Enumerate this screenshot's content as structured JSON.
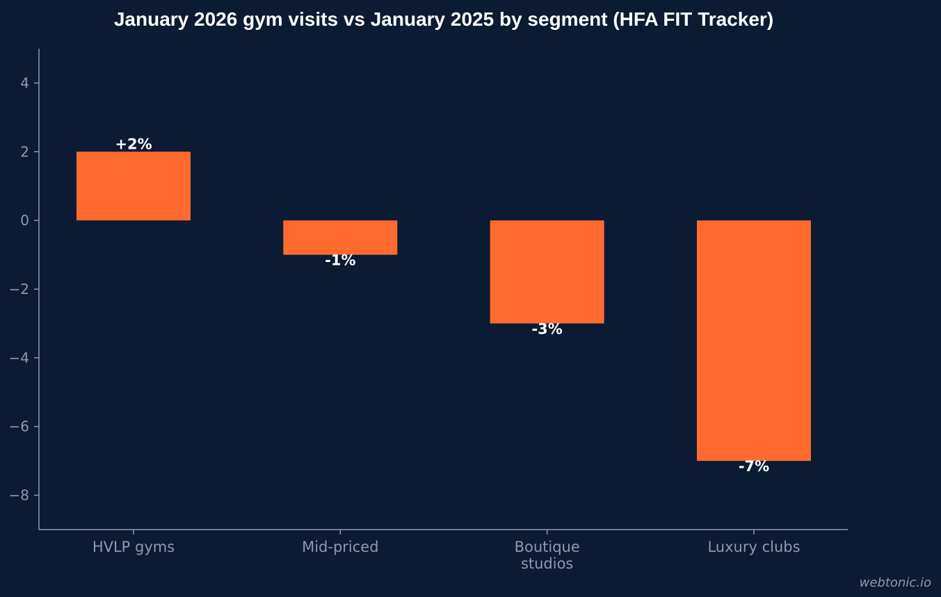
{
  "chart_data": {
    "type": "bar",
    "title": "January 2026 gym visits vs January 2025 by segment (HFA FIT Tracker)",
    "xlabel": "",
    "ylabel": "",
    "categories": [
      [
        "HVLP gyms"
      ],
      [
        "Mid-priced"
      ],
      [
        "Boutique",
        "studios"
      ],
      [
        "Luxury clubs"
      ]
    ],
    "values": [
      2,
      -1,
      -3,
      -7
    ],
    "data_labels": [
      "+2%",
      "-1%",
      "-3%",
      "-7%"
    ],
    "ylim": [
      -9,
      5
    ],
    "yticks": [
      4,
      2,
      0,
      -2,
      -4,
      -6,
      -8
    ],
    "ytick_labels": [
      "4",
      "2",
      "0",
      "−2",
      "−4",
      "−6",
      "−8"
    ],
    "grid": false,
    "legend": "none"
  },
  "colors": {
    "background": "#0b1b33",
    "bar": "#ff6b2e",
    "axis": "#8b9ab8",
    "label": "#ffffff"
  },
  "watermark": "webtonic.io"
}
